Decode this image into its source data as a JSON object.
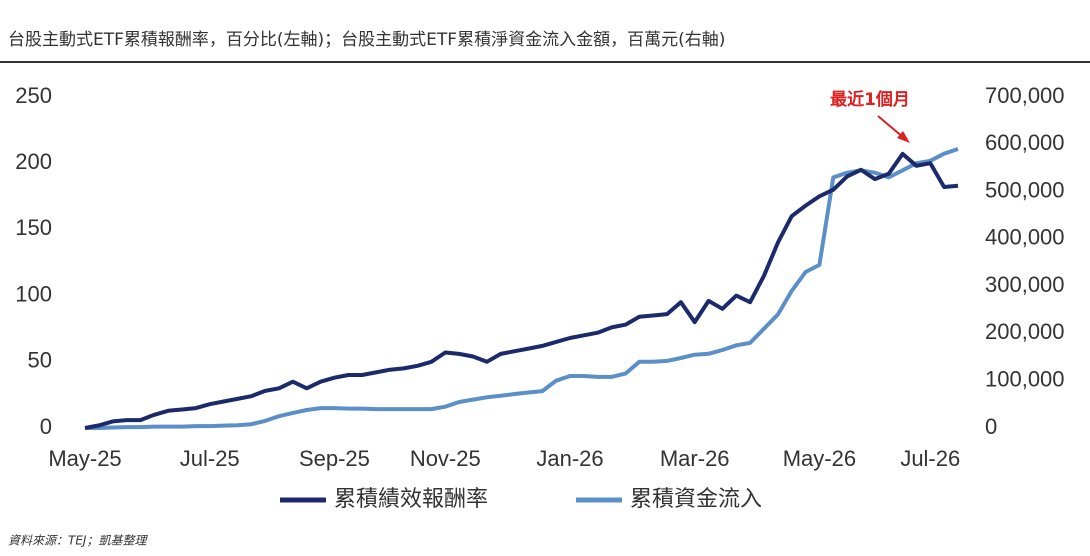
{
  "chart_data": {
    "type": "line",
    "title": "台股主動式ETF累積報酬率，百分比(左軸)；台股主動式ETF累積淨資金流入金額，百萬元(右軸)",
    "categories": [
      "May-25",
      null,
      null,
      null,
      null,
      null,
      null,
      null,
      null,
      "Jul-25",
      null,
      null,
      null,
      null,
      null,
      null,
      null,
      null,
      "Sep-25",
      null,
      null,
      null,
      null,
      null,
      null,
      null,
      "Nov-25",
      null,
      null,
      null,
      null,
      null,
      null,
      null,
      null,
      "Jan-26",
      null,
      null,
      null,
      null,
      null,
      null,
      null,
      null,
      "Mar-26",
      null,
      null,
      null,
      null,
      null,
      null,
      null,
      null,
      "May-26",
      null,
      null,
      null,
      null,
      null,
      null,
      null,
      "Jul-26",
      null,
      null
    ],
    "series": [
      {
        "name": "累積績效報酬率",
        "color": "#1b2a6b",
        "axis": "y",
        "values": [
          0,
          2,
          5,
          6,
          6,
          10,
          13,
          14,
          15,
          18,
          20,
          22,
          24,
          28,
          30,
          35,
          30,
          35,
          38,
          40,
          40,
          42,
          44,
          45,
          47,
          50,
          57,
          56,
          54,
          50,
          56,
          58,
          60,
          62,
          65,
          68,
          70,
          72,
          76,
          78,
          84,
          85,
          86,
          95,
          80,
          96,
          90,
          100,
          95,
          115,
          140,
          160,
          168,
          175,
          180,
          190,
          195,
          188,
          192,
          207,
          198,
          200,
          182,
          183
        ]
      },
      {
        "name": "累積資金流入",
        "color": "#5b8fc7",
        "axis": "y2",
        "values": [
          0,
          0,
          1000,
          2000,
          2000,
          3000,
          3000,
          3000,
          4000,
          4000,
          5000,
          6000,
          8000,
          15000,
          25000,
          32000,
          38000,
          42000,
          42000,
          41000,
          41000,
          40000,
          40000,
          40000,
          40000,
          40000,
          45000,
          55000,
          60000,
          65000,
          68000,
          72000,
          75000,
          78000,
          100000,
          110000,
          110000,
          108000,
          108000,
          115000,
          140000,
          140000,
          142000,
          148000,
          155000,
          157000,
          165000,
          175000,
          180000,
          210000,
          240000,
          290000,
          330000,
          345000,
          530000,
          540000,
          545000,
          540000,
          530000,
          545000,
          560000,
          565000,
          580000,
          590000
        ]
      }
    ],
    "ylim": [
      0,
      250
    ],
    "yticks": [
      0,
      50,
      100,
      150,
      200,
      250
    ],
    "y2lim": [
      0,
      700000
    ],
    "y2ticks": [
      0,
      {
        "value": 100000,
        "label": "100,000"
      },
      {
        "value": 200000,
        "label": "200,000"
      },
      {
        "value": 300000,
        "label": "300,000"
      },
      {
        "value": 400000,
        "label": "400,000"
      },
      {
        "value": 500000,
        "label": "500,000"
      },
      {
        "value": 600000,
        "label": "600,000"
      },
      {
        "value": 700000,
        "label": "700,000"
      }
    ],
    "annotation": "最近1個月",
    "source": "資料來源：TEJ；凱基整理"
  }
}
